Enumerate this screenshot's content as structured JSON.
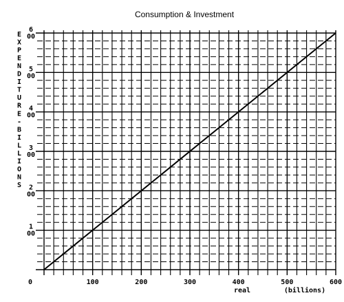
{
  "chart_data": {
    "type": "line",
    "title": "Consumption & Investment",
    "ylabel": "EXPENDITURE-BILLIONS",
    "xlabel_parts": [
      "real",
      "(billions)"
    ],
    "xlim": [
      0,
      600
    ],
    "ylim": [
      0,
      600
    ],
    "x_ticks": [
      "0",
      "100",
      "200",
      "300",
      "400",
      "500",
      "600"
    ],
    "y_ticks": [
      {
        "value": 100,
        "lines": [
          "1",
          "00"
        ]
      },
      {
        "value": 200,
        "lines": [
          "2",
          "00"
        ]
      },
      {
        "value": 300,
        "lines": [
          "3",
          "00"
        ]
      },
      {
        "value": 400,
        "lines": [
          "4",
          "00"
        ]
      },
      {
        "value": 500,
        "lines": [
          "5",
          "00"
        ]
      },
      {
        "value": 600,
        "lines": [
          "6",
          "00"
        ]
      }
    ],
    "x_minor_step": 20,
    "y_minor_step": 20,
    "y_dashed_minor": true,
    "grid": true,
    "series": [
      {
        "x": [
          0,
          600
        ],
        "y": [
          0,
          600
        ]
      }
    ],
    "line_color": "#000000"
  }
}
